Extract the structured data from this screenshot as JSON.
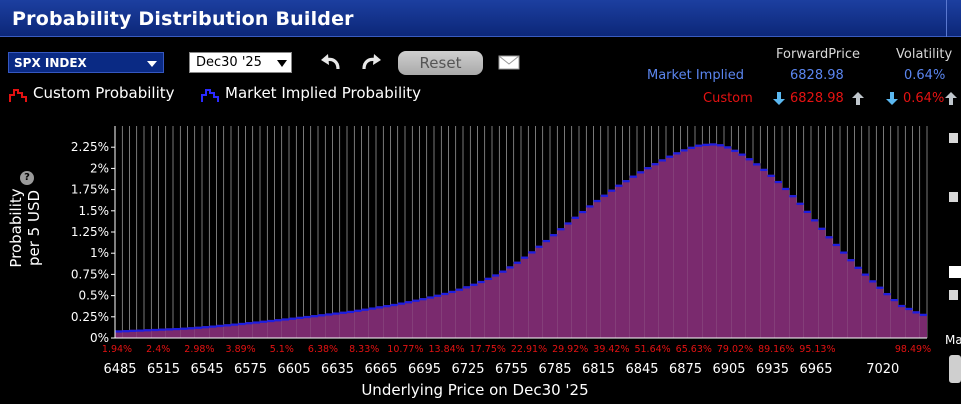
{
  "window": {
    "title": "Probability Distribution Builder"
  },
  "toolbar": {
    "ticker": "SPX INDEX",
    "expiry": "Dec30 '25",
    "undo_icon": "undo-icon",
    "redo_icon": "redo-icon",
    "reset_label": "Reset",
    "mail_icon": "mail-icon"
  },
  "legend": {
    "custom": "Custom Probability",
    "market": "Market Implied Probability"
  },
  "stats": {
    "forward_header": "ForwardPrice",
    "vol_header": "Volatility",
    "market_label": "Market Implied",
    "market_forward": "6828.98",
    "market_vol": "0.64%",
    "custom_label": "Custom",
    "custom_forward": "6828.98",
    "custom_vol": "0.64%"
  },
  "colors": {
    "bar_fill": "#7a2a6e",
    "bar_top": "#1e1ee0",
    "custom_red": "#e41212",
    "market_blue": "#5b86f0"
  },
  "chart_data": {
    "type": "bar",
    "ylabel_line1": "Probability",
    "ylabel_line2": "per 5 USD",
    "xlabel": "Underlying Price on Dec30 '25",
    "ylim": [
      0,
      0.025
    ],
    "yticks": [
      "0%",
      "0.25%",
      "0.5%",
      "0.75%",
      "1%",
      "1.25%",
      "1.5%",
      "1.75%",
      "2%",
      "2.25%"
    ],
    "xticks": [
      "6485",
      "6515",
      "6545",
      "6575",
      "6605",
      "6635",
      "6665",
      "6695",
      "6725",
      "6755",
      "6785",
      "6815",
      "6845",
      "6875",
      "6905",
      "6935",
      "6965",
      "7020"
    ],
    "cumulative_labels": [
      "1.94%",
      "2.4%",
      "2.98%",
      "3.89%",
      "5.1%",
      "6.38%",
      "8.33%",
      "10.77%",
      "13.84%",
      "17.75%",
      "22.91%",
      "29.92%",
      "39.42%",
      "51.64%",
      "65.63%",
      "79.02%",
      "89.16%",
      "95.13%",
      "98.49%"
    ],
    "x_start": 6485,
    "x_end": 7020,
    "bin_width": 5,
    "values": [
      0.0009,
      0.00093,
      0.00097,
      0.001,
      0.00104,
      0.00107,
      0.00111,
      0.00114,
      0.00118,
      0.00122,
      0.00127,
      0.00133,
      0.0014,
      0.00147,
      0.00155,
      0.00162,
      0.0017,
      0.00178,
      0.00187,
      0.00195,
      0.00204,
      0.00213,
      0.00222,
      0.00231,
      0.0024,
      0.0025,
      0.0026,
      0.0027,
      0.0028,
      0.0029,
      0.003,
      0.0031,
      0.0032,
      0.00333,
      0.00346,
      0.0036,
      0.00374,
      0.00388,
      0.00402,
      0.00418,
      0.00434,
      0.00452,
      0.0047,
      0.0049,
      0.0051,
      0.00532,
      0.00556,
      0.00582,
      0.0061,
      0.0064,
      0.00673,
      0.0071,
      0.0075,
      0.00795,
      0.00845,
      0.009,
      0.0096,
      0.01022,
      0.01088,
      0.01156,
      0.01225,
      0.01295,
      0.01363,
      0.0143,
      0.01498,
      0.01564,
      0.01628,
      0.0169,
      0.0175,
      0.01808,
      0.01862,
      0.01915,
      0.01966,
      0.02015,
      0.02062,
      0.02107,
      0.0215,
      0.0219,
      0.02225,
      0.02255,
      0.0228,
      0.0229,
      0.02295,
      0.02285,
      0.0226,
      0.0222,
      0.02175,
      0.0212,
      0.0206,
      0.01995,
      0.01925,
      0.01852,
      0.0177,
      0.01685,
      0.01595,
      0.015,
      0.014,
      0.013,
      0.012,
      0.0111,
      0.0102,
      0.0093,
      0.0084,
      0.0076,
      0.0068,
      0.00605,
      0.0053,
      0.0046,
      0.0039,
      0.00355,
      0.00315,
      0.00285
    ]
  }
}
